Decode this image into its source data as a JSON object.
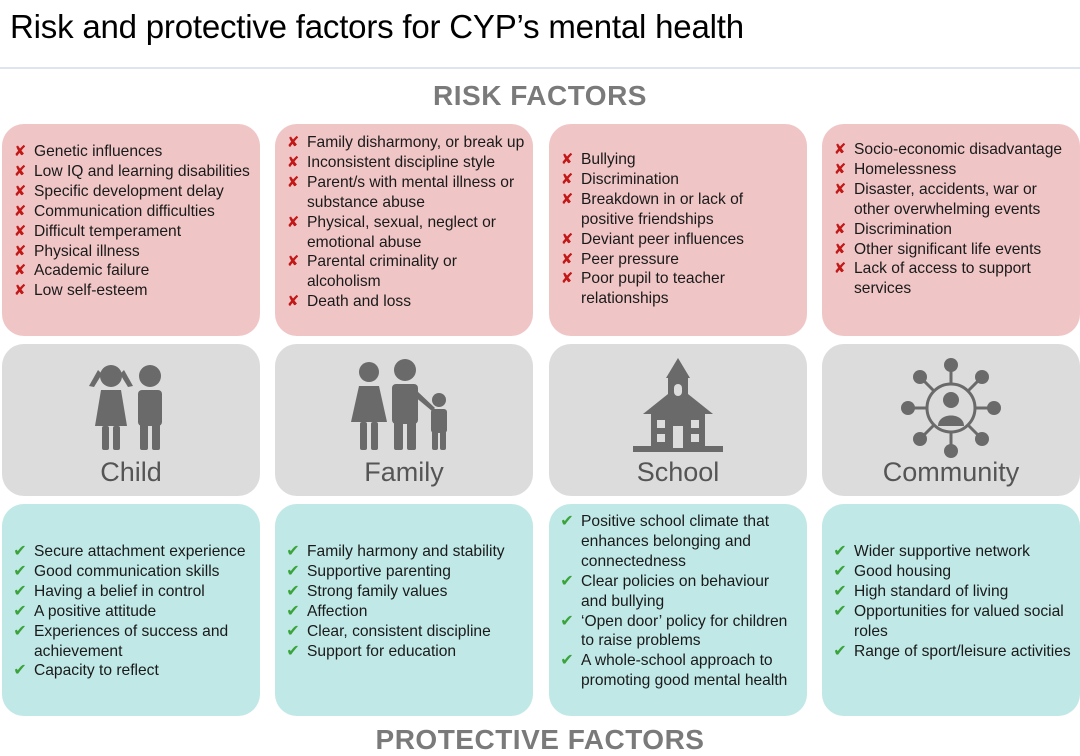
{
  "title": "Risk and protective factors for CYP’s mental health",
  "risk_heading": "RISK FACTORS",
  "protective_heading": "PROTECTIVE FACTORS",
  "colors": {
    "risk_card": "#f0c5c6",
    "icon_card": "#dcdcdc",
    "protective_card": "#bfe8e6",
    "cross_mark": "#c21818",
    "check_mark": "#3aa33a",
    "icon_gray": "#6a6a6a",
    "heading_gray": "#7a7a7a"
  },
  "marks": {
    "risk": "✘",
    "protective": "✔"
  },
  "columns": [
    {
      "label": "Child",
      "icon": "children-icon",
      "risk": [
        "Genetic influences",
        "Low IQ and learning disabilities",
        "Specific development delay",
        "Communication difficulties",
        "Difficult temperament",
        "Physical illness",
        "Academic failure",
        "Low self-esteem"
      ],
      "protective": [
        "Secure attachment experience",
        "Good communication skills",
        "Having a belief in control",
        "A positive attitude",
        "Experiences of success and achievement",
        "Capacity to reflect"
      ]
    },
    {
      "label": "Family",
      "icon": "family-icon",
      "risk": [
        "Family disharmony, or break up",
        "Inconsistent discipline style",
        "Parent/s with mental illness or substance abuse",
        "Physical, sexual, neglect or emotional abuse",
        "Parental criminality or alcoholism",
        "Death and loss"
      ],
      "protective": [
        "Family harmony and stability",
        "Supportive parenting",
        "Strong family values",
        "Affection",
        "Clear, consistent discipline",
        "Support for education"
      ]
    },
    {
      "label": "School",
      "icon": "school-building-icon",
      "risk": [
        "Bullying",
        "Discrimination",
        "Breakdown in or lack of positive friendships",
        "Deviant peer influences",
        "Peer pressure",
        "Poor pupil to teacher relationships"
      ],
      "protective": [
        "Positive school climate that enhances belonging and connectedness",
        "Clear policies on behaviour and bullying",
        "‘Open door’ policy for children to raise problems",
        "A whole-school approach to promoting good mental health"
      ]
    },
    {
      "label": "Community",
      "icon": "community-network-icon",
      "risk": [
        "Socio-economic disadvantage",
        "Homelessness",
        "Disaster, accidents, war or other overwhelming events",
        "Discrimination",
        "Other significant life events",
        "Lack of access to support services"
      ],
      "protective": [
        "Wider supportive network",
        "Good housing",
        "High standard of living",
        "Opportunities for valued social roles",
        "Range of sport/leisure activities"
      ]
    }
  ]
}
